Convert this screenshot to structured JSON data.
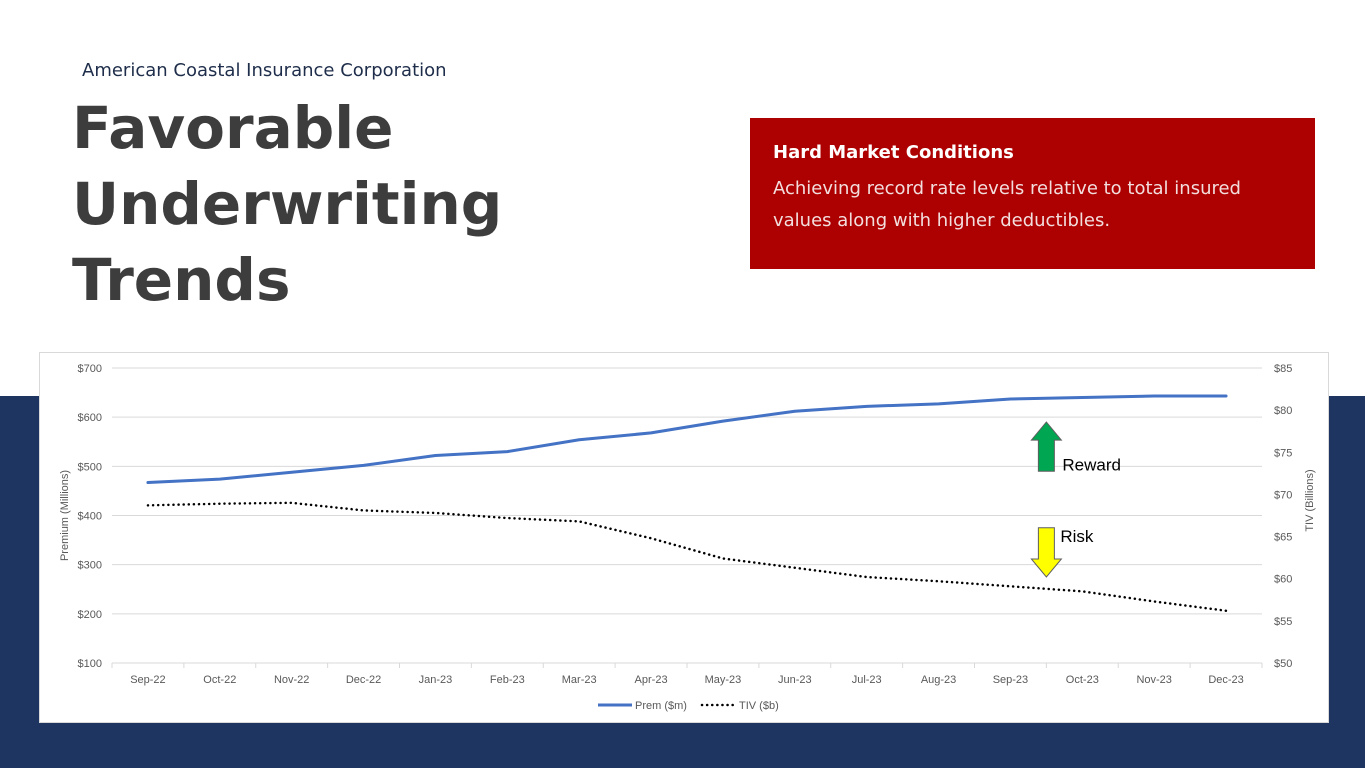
{
  "header": {
    "company": "American Coastal Insurance Corporation",
    "title": "Favorable Underwriting Trends"
  },
  "callout": {
    "title": "Hard Market Conditions",
    "body": "Achieving record rate levels relative to total insured values along with higher deductibles."
  },
  "colors": {
    "navy": "#1e3561",
    "callout_red": "#ad0000",
    "premium_line": "#4472c4",
    "tiv_line": "#000000",
    "reward_arrow": "#00a651",
    "risk_arrow": "#ffff00"
  },
  "chart_data": {
    "type": "line",
    "categories": [
      "Sep-22",
      "Oct-22",
      "Nov-22",
      "Dec-22",
      "Jan-23",
      "Feb-23",
      "Mar-23",
      "Apr-23",
      "May-23",
      "Jun-23",
      "Jul-23",
      "Aug-23",
      "Sep-23",
      "Oct-23",
      "Nov-23",
      "Dec-23"
    ],
    "series": [
      {
        "name": "Prem ($m)",
        "axis": "left",
        "style": "solid",
        "values": [
          467,
          474,
          488,
          502,
          522,
          530,
          554,
          568,
          592,
          612,
          622,
          627,
          637,
          640,
          643,
          643
        ]
      },
      {
        "name": "TIV ($b)",
        "axis": "right",
        "style": "dotted",
        "values": [
          68.7,
          68.9,
          69.0,
          68.1,
          67.8,
          67.2,
          66.8,
          64.8,
          62.4,
          61.3,
          60.2,
          59.7,
          59.1,
          58.5,
          57.3,
          56.2
        ]
      }
    ],
    "left_axis": {
      "label": "Premium (Millions)",
      "min": 100,
      "max": 700,
      "step": 100,
      "ticks": [
        "$100",
        "$200",
        "$300",
        "$400",
        "$500",
        "$600",
        "$700"
      ]
    },
    "right_axis": {
      "label": "TIV (Billions)",
      "min": 50,
      "max": 85,
      "step": 5,
      "ticks": [
        "$50",
        "$55",
        "$60",
        "$65",
        "$70",
        "$75",
        "$80",
        "$85"
      ]
    },
    "annotations": [
      {
        "text": "Reward",
        "direction": "up"
      },
      {
        "text": "Risk",
        "direction": "down"
      }
    ],
    "legend": {
      "position": "bottom-center",
      "entries": [
        "Prem ($m)",
        "TIV ($b)"
      ]
    },
    "grid": true
  }
}
